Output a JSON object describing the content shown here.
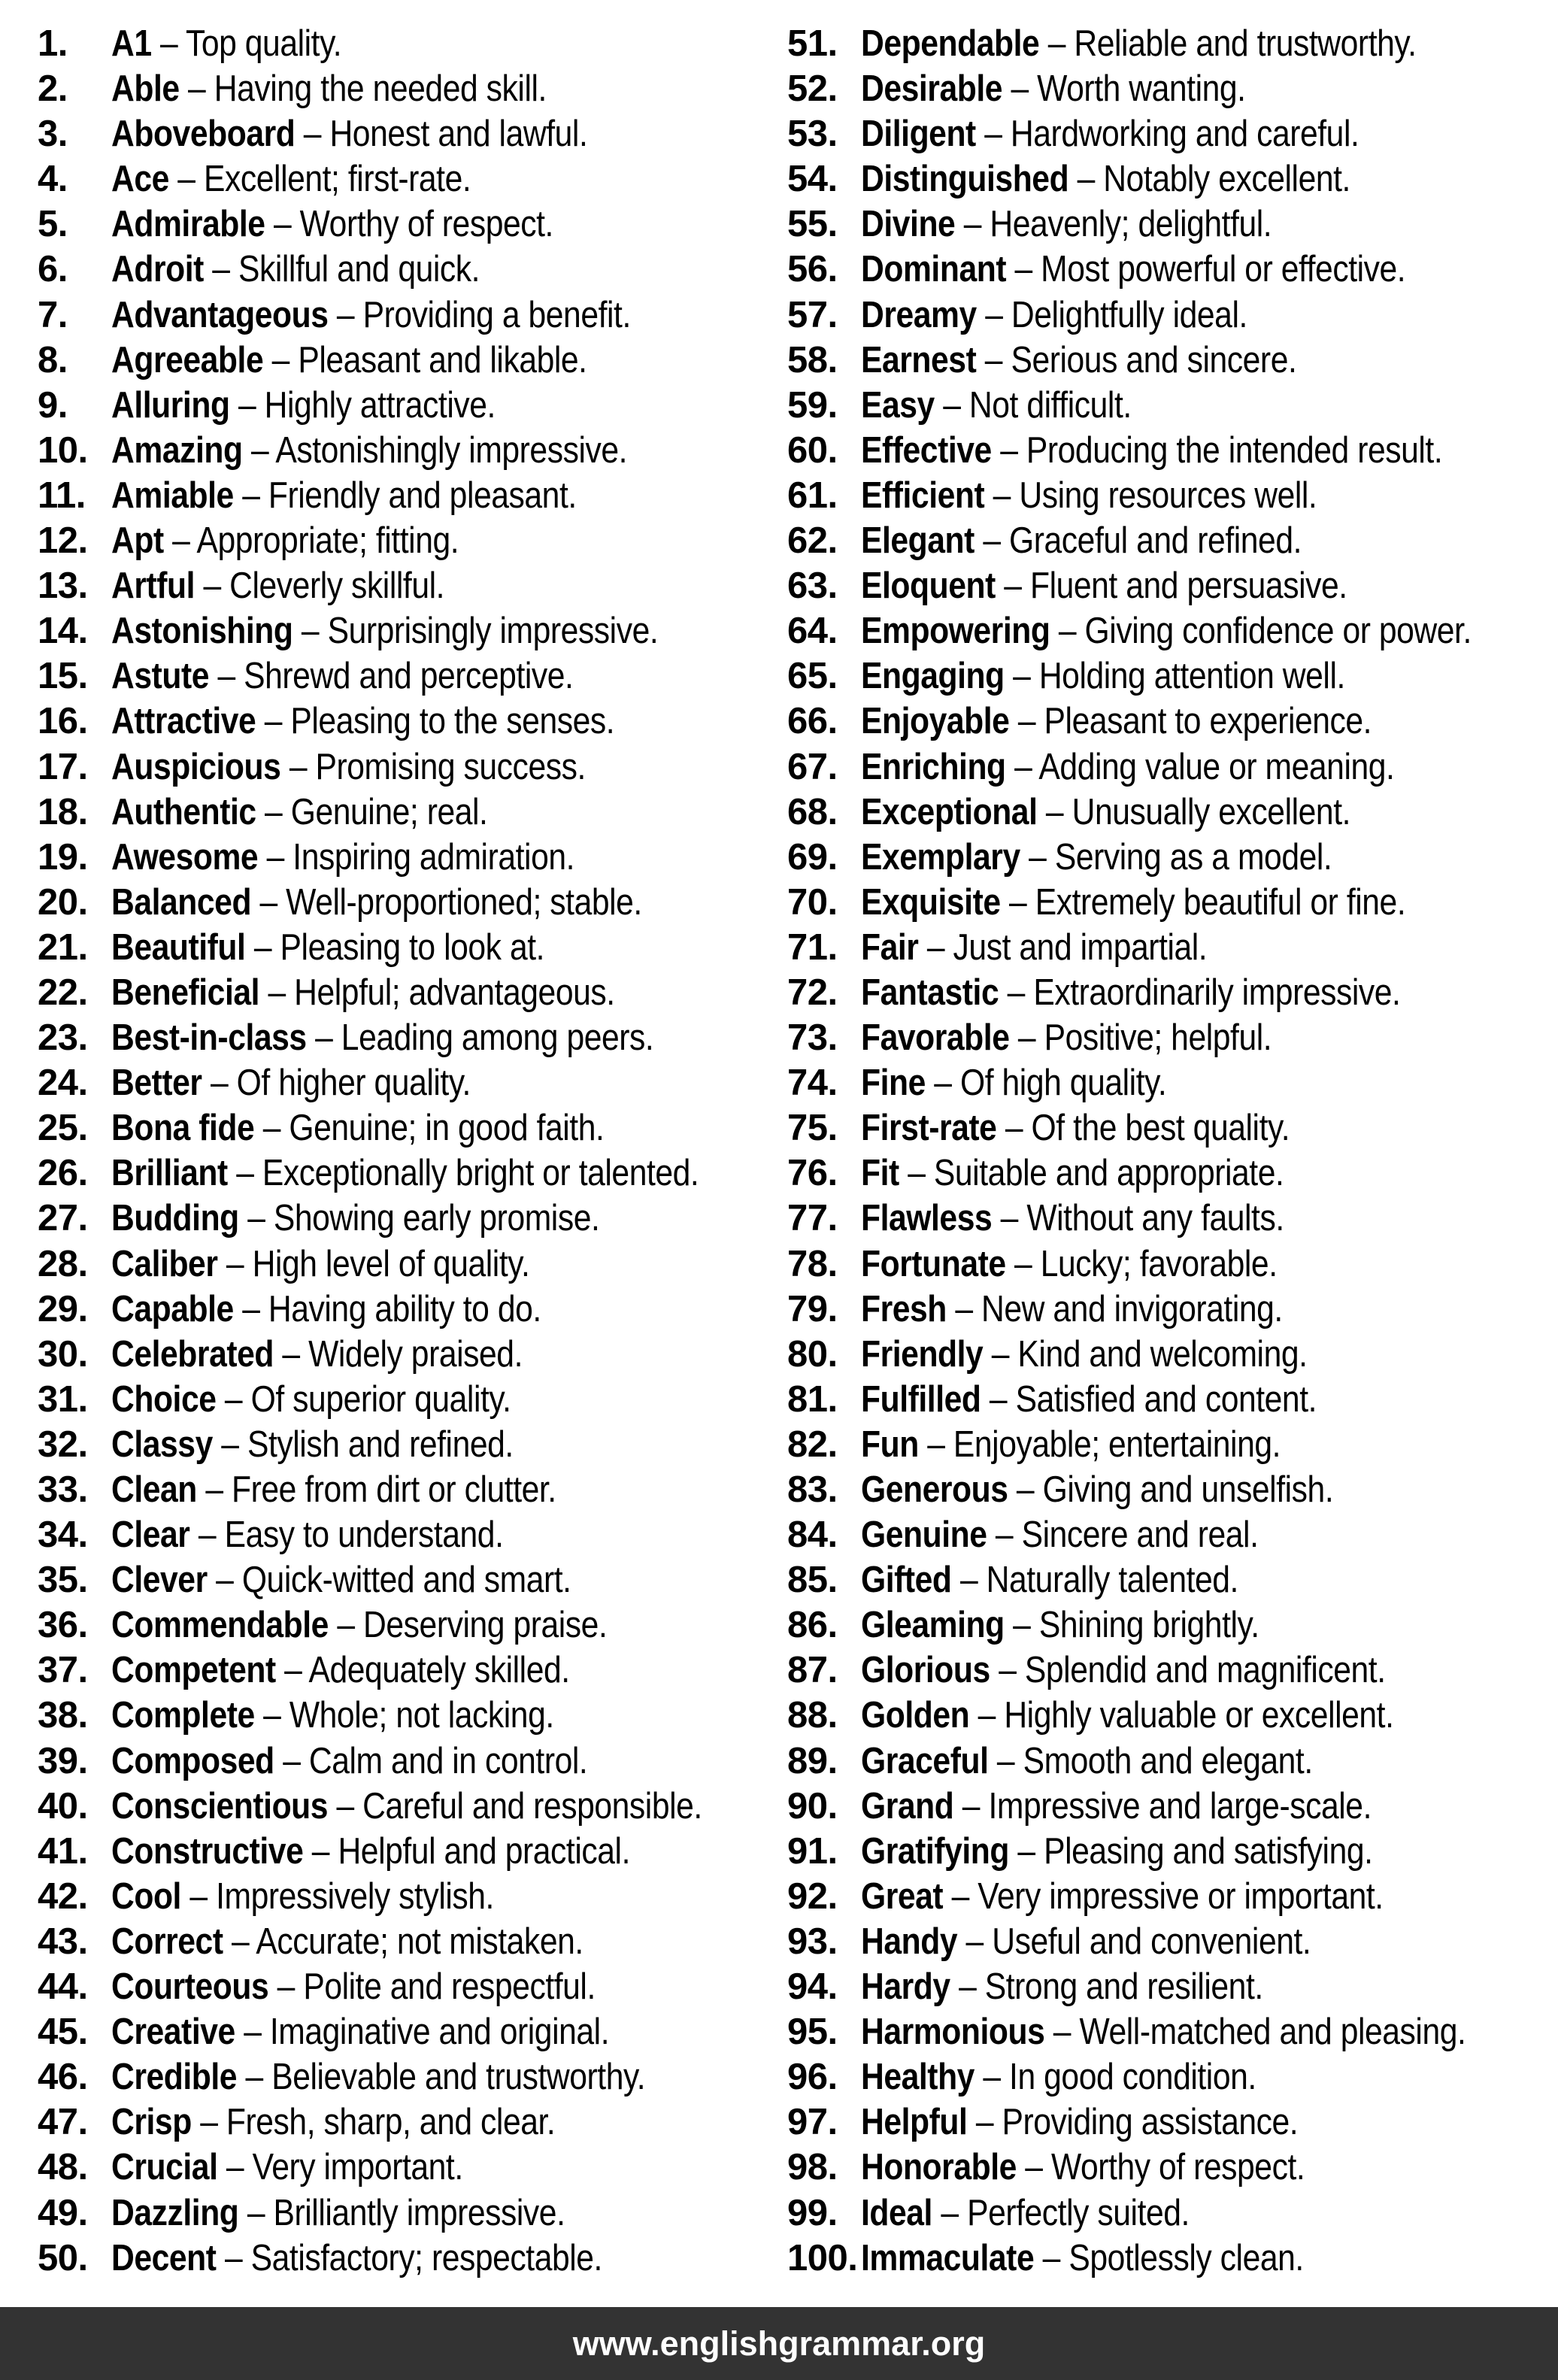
{
  "page": {
    "background": "#ffffff",
    "text_color": "#000000"
  },
  "footer": {
    "url": "www.englishgrammar.org",
    "bar_color": "#333333",
    "text_color": "#ffffff"
  },
  "list": {
    "separator": " – ",
    "items": [
      {
        "num": "1.",
        "word": "A1",
        "def": "Top quality."
      },
      {
        "num": "2.",
        "word": "Able",
        "def": "Having the needed skill."
      },
      {
        "num": "3.",
        "word": "Aboveboard",
        "def": "Honest and lawful."
      },
      {
        "num": "4.",
        "word": "Ace",
        "def": "Excellent; first-rate."
      },
      {
        "num": "5.",
        "word": "Admirable",
        "def": "Worthy of respect."
      },
      {
        "num": "6.",
        "word": "Adroit",
        "def": "Skillful and quick."
      },
      {
        "num": "7.",
        "word": "Advantageous",
        "def": "Providing a benefit."
      },
      {
        "num": "8.",
        "word": "Agreeable",
        "def": "Pleasant and likable."
      },
      {
        "num": "9.",
        "word": "Alluring",
        "def": "Highly attractive."
      },
      {
        "num": "10.",
        "word": "Amazing",
        "def": "Astonishingly impressive."
      },
      {
        "num": "11.",
        "word": "Amiable",
        "def": "Friendly and pleasant."
      },
      {
        "num": "12.",
        "word": "Apt",
        "def": "Appropriate; fitting."
      },
      {
        "num": "13.",
        "word": "Artful",
        "def": "Cleverly skillful."
      },
      {
        "num": "14.",
        "word": "Astonishing",
        "def": "Surprisingly impressive."
      },
      {
        "num": "15.",
        "word": "Astute",
        "def": "Shrewd and perceptive."
      },
      {
        "num": "16.",
        "word": "Attractive",
        "def": "Pleasing to the senses."
      },
      {
        "num": "17.",
        "word": "Auspicious",
        "def": "Promising success."
      },
      {
        "num": "18.",
        "word": "Authentic",
        "def": "Genuine; real."
      },
      {
        "num": "19.",
        "word": "Awesome",
        "def": "Inspiring admiration."
      },
      {
        "num": "20.",
        "word": "Balanced",
        "def": "Well-proportioned; stable."
      },
      {
        "num": "21.",
        "word": "Beautiful",
        "def": "Pleasing to look at."
      },
      {
        "num": "22.",
        "word": "Beneficial",
        "def": "Helpful; advantageous."
      },
      {
        "num": "23.",
        "word": "Best-in-class",
        "def": "Leading among peers."
      },
      {
        "num": "24.",
        "word": "Better",
        "def": "Of higher quality."
      },
      {
        "num": "25.",
        "word": "Bona fide",
        "def": "Genuine; in good faith."
      },
      {
        "num": "26.",
        "word": "Brilliant",
        "def": "Exceptionally bright or talented."
      },
      {
        "num": "27.",
        "word": "Budding",
        "def": "Showing early promise."
      },
      {
        "num": "28.",
        "word": "Caliber",
        "def": "High level of quality."
      },
      {
        "num": "29.",
        "word": "Capable",
        "def": "Having ability to do."
      },
      {
        "num": "30.",
        "word": "Celebrated",
        "def": "Widely praised."
      },
      {
        "num": "31.",
        "word": "Choice",
        "def": "Of superior quality."
      },
      {
        "num": "32.",
        "word": "Classy",
        "def": "Stylish and refined."
      },
      {
        "num": "33.",
        "word": "Clean",
        "def": "Free from dirt or clutter."
      },
      {
        "num": "34.",
        "word": "Clear",
        "def": "Easy to understand."
      },
      {
        "num": "35.",
        "word": "Clever",
        "def": "Quick-witted and smart."
      },
      {
        "num": "36.",
        "word": "Commendable",
        "def": "Deserving praise."
      },
      {
        "num": "37.",
        "word": "Competent",
        "def": "Adequately skilled."
      },
      {
        "num": "38.",
        "word": "Complete",
        "def": "Whole; not lacking."
      },
      {
        "num": "39.",
        "word": "Composed",
        "def": "Calm and in control."
      },
      {
        "num": "40.",
        "word": "Conscientious",
        "def": "Careful and responsible."
      },
      {
        "num": "41.",
        "word": "Constructive",
        "def": "Helpful and practical."
      },
      {
        "num": "42.",
        "word": "Cool",
        "def": "Impressively stylish."
      },
      {
        "num": "43.",
        "word": "Correct",
        "def": "Accurate; not mistaken."
      },
      {
        "num": "44.",
        "word": "Courteous",
        "def": "Polite and respectful."
      },
      {
        "num": "45.",
        "word": "Creative",
        "def": "Imaginative and original."
      },
      {
        "num": "46.",
        "word": "Credible",
        "def": "Believable and trustworthy."
      },
      {
        "num": "47.",
        "word": "Crisp",
        "def": "Fresh, sharp, and clear."
      },
      {
        "num": "48.",
        "word": "Crucial",
        "def": "Very important."
      },
      {
        "num": "49.",
        "word": "Dazzling",
        "def": "Brilliantly impressive."
      },
      {
        "num": "50.",
        "word": "Decent",
        "def": "Satisfactory; respectable."
      },
      {
        "num": "51.",
        "word": "Dependable",
        "def": "Reliable and trustworthy."
      },
      {
        "num": "52.",
        "word": "Desirable",
        "def": "Worth wanting."
      },
      {
        "num": "53.",
        "word": "Diligent",
        "def": "Hardworking and careful."
      },
      {
        "num": "54.",
        "word": "Distinguished",
        "def": "Notably excellent."
      },
      {
        "num": "55.",
        "word": "Divine",
        "def": "Heavenly; delightful."
      },
      {
        "num": "56.",
        "word": "Dominant",
        "def": "Most powerful or effective."
      },
      {
        "num": "57.",
        "word": "Dreamy",
        "def": "Delightfully ideal."
      },
      {
        "num": "58.",
        "word": "Earnest",
        "def": "Serious and sincere."
      },
      {
        "num": "59.",
        "word": "Easy",
        "def": "Not difficult."
      },
      {
        "num": "60.",
        "word": "Effective",
        "def": "Producing the intended result."
      },
      {
        "num": "61.",
        "word": "Efficient",
        "def": "Using resources well."
      },
      {
        "num": "62.",
        "word": "Elegant",
        "def": "Graceful and refined."
      },
      {
        "num": "63.",
        "word": "Eloquent",
        "def": "Fluent and persuasive."
      },
      {
        "num": "64.",
        "word": "Empowering",
        "def": "Giving confidence or power."
      },
      {
        "num": "65.",
        "word": "Engaging",
        "def": "Holding attention well."
      },
      {
        "num": "66.",
        "word": "Enjoyable",
        "def": "Pleasant to experience."
      },
      {
        "num": "67.",
        "word": "Enriching",
        "def": "Adding value or meaning."
      },
      {
        "num": "68.",
        "word": "Exceptional",
        "def": "Unusually excellent."
      },
      {
        "num": "69.",
        "word": "Exemplary",
        "def": "Serving as a model."
      },
      {
        "num": "70.",
        "word": "Exquisite",
        "def": "Extremely beautiful or fine."
      },
      {
        "num": "71.",
        "word": "Fair",
        "def": "Just and impartial."
      },
      {
        "num": "72.",
        "word": "Fantastic",
        "def": "Extraordinarily impressive."
      },
      {
        "num": "73.",
        "word": "Favorable",
        "def": "Positive; helpful."
      },
      {
        "num": "74.",
        "word": "Fine",
        "def": "Of high quality."
      },
      {
        "num": "75.",
        "word": "First-rate",
        "def": "Of the best quality."
      },
      {
        "num": "76.",
        "word": "Fit",
        "def": "Suitable and appropriate."
      },
      {
        "num": "77.",
        "word": "Flawless",
        "def": "Without any faults."
      },
      {
        "num": "78.",
        "word": "Fortunate",
        "def": "Lucky; favorable."
      },
      {
        "num": "79.",
        "word": "Fresh",
        "def": "New and invigorating."
      },
      {
        "num": "80.",
        "word": "Friendly",
        "def": "Kind and welcoming."
      },
      {
        "num": "81.",
        "word": "Fulfilled",
        "def": "Satisfied and content."
      },
      {
        "num": "82.",
        "word": "Fun",
        "def": "Enjoyable; entertaining."
      },
      {
        "num": "83.",
        "word": "Generous",
        "def": "Giving and unselfish."
      },
      {
        "num": "84.",
        "word": "Genuine",
        "def": "Sincere and real."
      },
      {
        "num": "85.",
        "word": "Gifted",
        "def": "Naturally talented."
      },
      {
        "num": "86.",
        "word": "Gleaming",
        "def": "Shining brightly."
      },
      {
        "num": "87.",
        "word": "Glorious",
        "def": "Splendid and magnificent."
      },
      {
        "num": "88.",
        "word": "Golden",
        "def": "Highly valuable or excellent."
      },
      {
        "num": "89.",
        "word": "Graceful",
        "def": "Smooth and elegant."
      },
      {
        "num": "90.",
        "word": "Grand",
        "def": "Impressive and large-scale."
      },
      {
        "num": "91.",
        "word": "Gratifying",
        "def": "Pleasing and satisfying."
      },
      {
        "num": "92.",
        "word": "Great",
        "def": "Very impressive or important."
      },
      {
        "num": "93.",
        "word": "Handy",
        "def": "Useful and convenient."
      },
      {
        "num": "94.",
        "word": "Hardy",
        "def": "Strong and resilient."
      },
      {
        "num": "95.",
        "word": "Harmonious",
        "def": "Well-matched and pleasing."
      },
      {
        "num": "96.",
        "word": "Healthy",
        "def": "In good condition."
      },
      {
        "num": "97.",
        "word": "Helpful",
        "def": "Providing assistance."
      },
      {
        "num": "98.",
        "word": "Honorable",
        "def": "Worthy of respect."
      },
      {
        "num": "99.",
        "word": "Ideal",
        "def": "Perfectly suited."
      },
      {
        "num": "100.",
        "word": "Immaculate",
        "def": "Spotlessly clean."
      }
    ]
  }
}
